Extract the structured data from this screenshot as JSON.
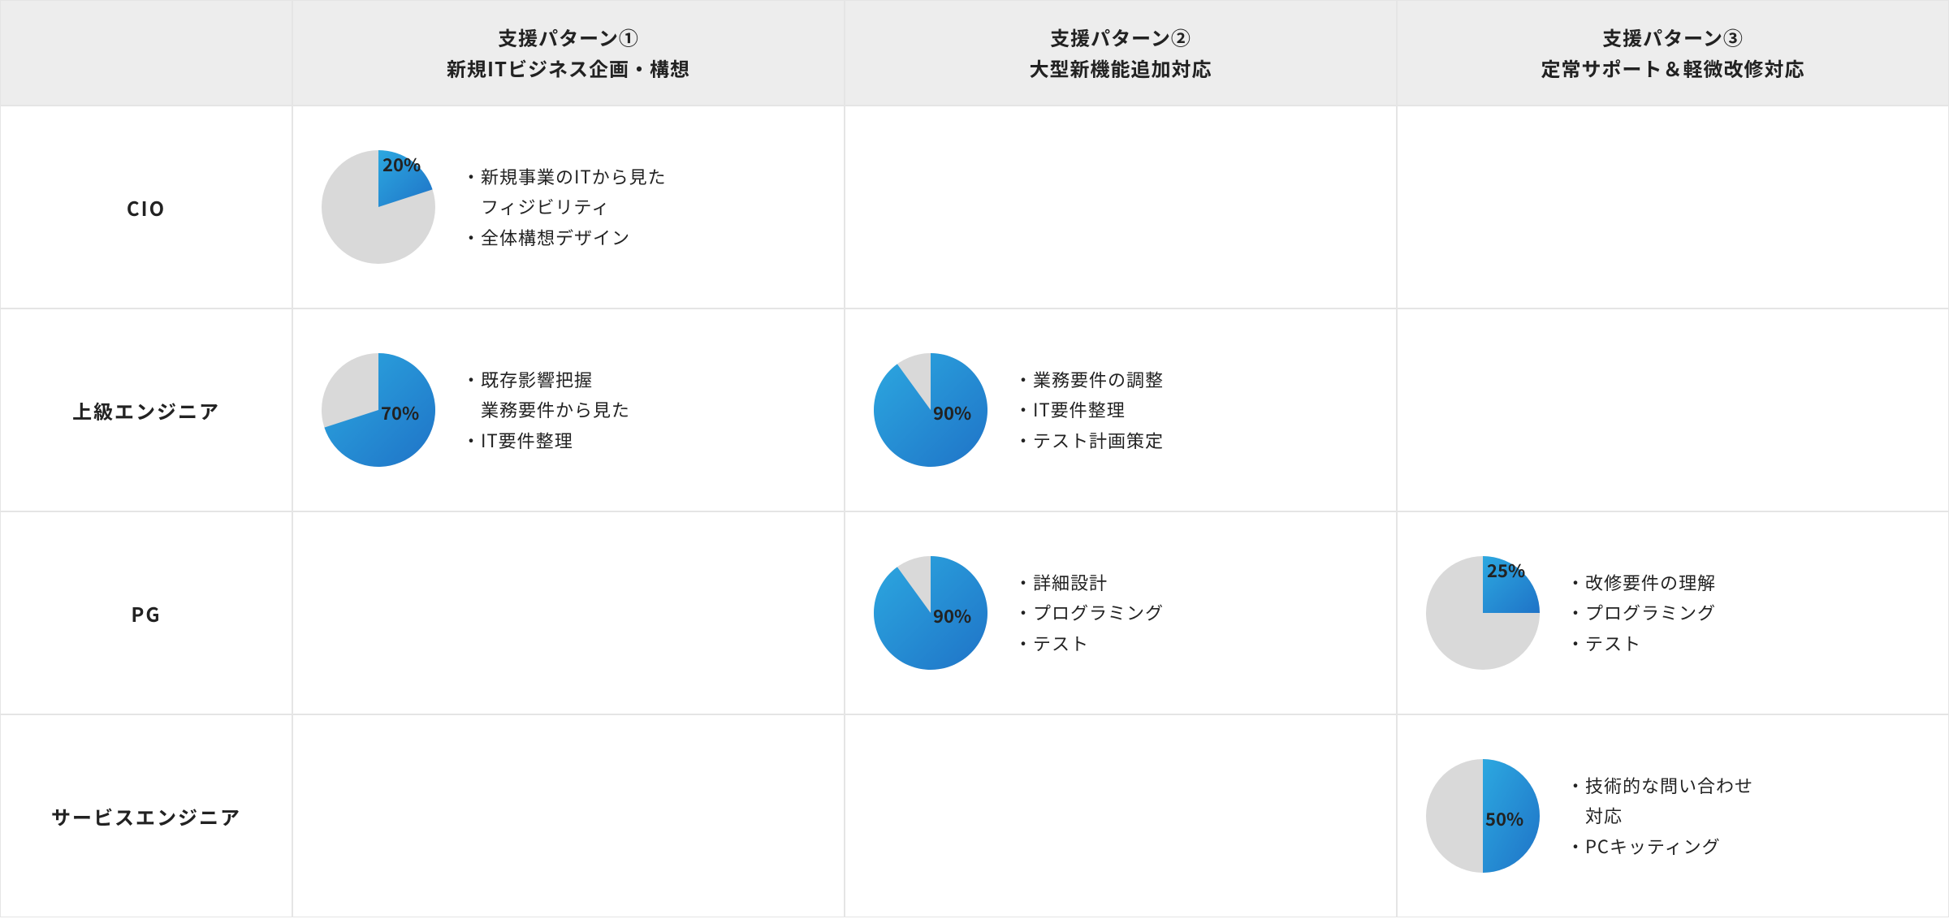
{
  "background_color": "#ffffff",
  "border_color": "#e5e5e5",
  "header_bg": "#ededed",
  "pie_bg_color": "#d9d9d9",
  "pie_fill_start": "#2ca8e0",
  "pie_fill_end": "#1f73c7",
  "text_color": "#222222",
  "font_weight_header": 700,
  "font_size_header": 24,
  "font_size_body": 22,
  "columns": [
    {
      "line1": "",
      "line2": ""
    },
    {
      "line1": "支援パターン①",
      "line2": "新規ITビジネス企画・構想"
    },
    {
      "line1": "支援パターン②",
      "line2": "大型新機能追加対応"
    },
    {
      "line1": "支援パターン③",
      "line2": "定常サポート＆軽微改修対応"
    }
  ],
  "roles": [
    {
      "label": "CIO"
    },
    {
      "label": "上級エンジニア"
    },
    {
      "label": "PG"
    },
    {
      "label": "サービスエンジニア"
    }
  ],
  "cells": {
    "r0c1": {
      "percent": 20,
      "label_text": "20%",
      "label_pos": "top-right",
      "bullets": [
        "・新規事業のITから見た",
        "　フィジビリティ",
        "・全体構想デザイン"
      ]
    },
    "r1c1": {
      "percent": 70,
      "label_text": "70%",
      "label_pos": "center-right",
      "bullets": [
        "・既存影響把握",
        "　業務要件から見た",
        "・IT要件整理"
      ]
    },
    "r1c2": {
      "percent": 90,
      "label_text": "90%",
      "label_pos": "center-right",
      "bullets": [
        "・業務要件の調整",
        "・IT要件整理",
        "・テスト計画策定"
      ]
    },
    "r2c2": {
      "percent": 90,
      "label_text": "90%",
      "label_pos": "center-right",
      "bullets": [
        "・詳細設計",
        "・プログラミング",
        "・テスト"
      ]
    },
    "r2c3": {
      "percent": 25,
      "label_text": "25%",
      "label_pos": "top-right",
      "bullets": [
        "・改修要件の理解",
        "・プログラミング",
        "・テスト"
      ]
    },
    "r3c3": {
      "percent": 50,
      "label_text": "50%",
      "label_pos": "center-right",
      "bullets": [
        "・技術的な問い合わせ",
        "　対応",
        "・PCキッティング"
      ]
    }
  }
}
